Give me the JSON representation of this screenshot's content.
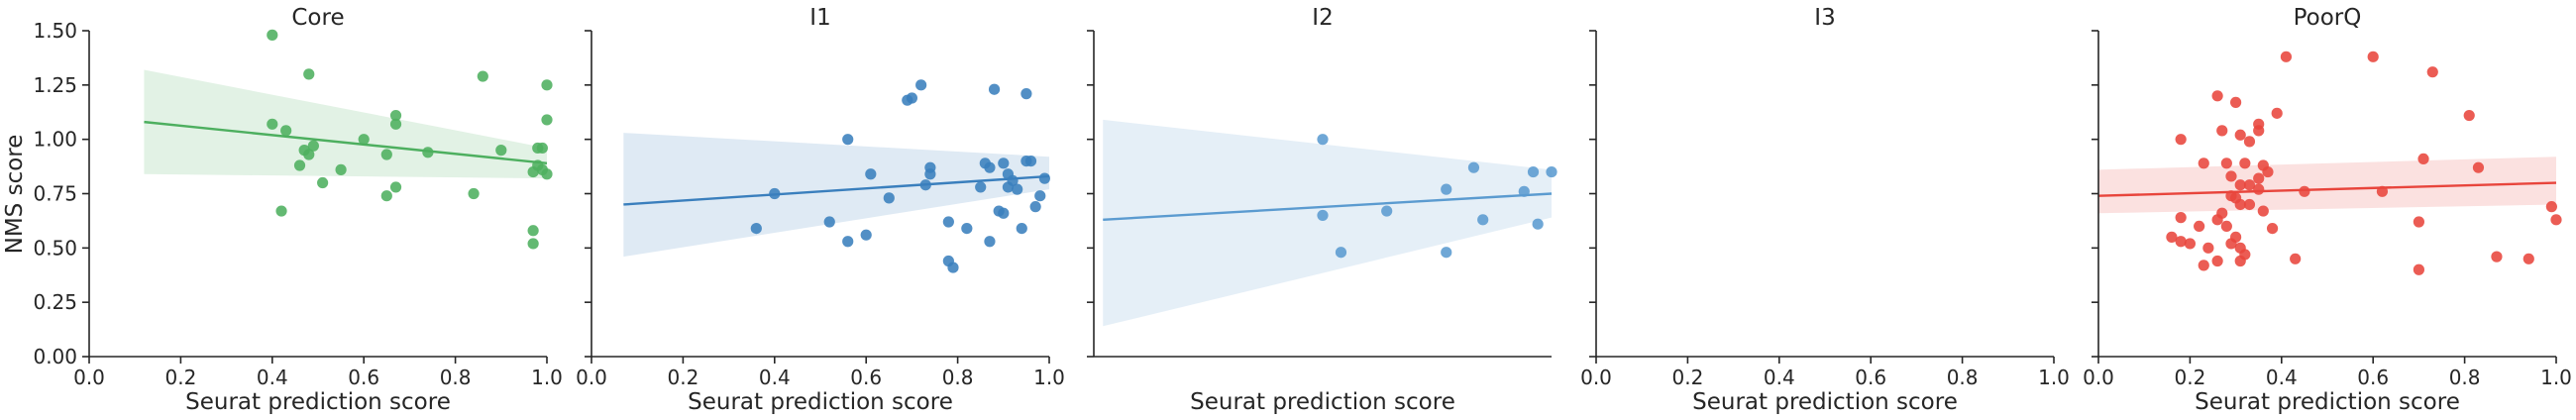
{
  "chart_data": {
    "type": "scatter",
    "ylabel": "NMS score",
    "xlabel": "Seurat prediction score",
    "xlim": [
      0,
      1
    ],
    "ylim": [
      0,
      1.5
    ],
    "xticks": [
      "0.0",
      "0.2",
      "0.4",
      "0.6",
      "0.8",
      "1.0"
    ],
    "yticks": [
      "0.00",
      "0.25",
      "0.50",
      "0.75",
      "1.00",
      "1.25",
      "1.50"
    ],
    "grid": false,
    "panels": [
      {
        "title": "Core",
        "color": "#4daf5f",
        "band_color": "#4daf5f",
        "show_xticks": true,
        "show_ytick_labels": true,
        "fit": {
          "x": [
            0.12,
            1.0
          ],
          "y": [
            1.08,
            0.89
          ],
          "lo": [
            0.84,
            0.82
          ],
          "hi": [
            1.32,
            0.96
          ]
        },
        "points": [
          [
            0.4,
            1.48
          ],
          [
            0.48,
            1.3
          ],
          [
            0.86,
            1.29
          ],
          [
            1.0,
            1.25
          ],
          [
            0.4,
            1.07
          ],
          [
            0.43,
            1.04
          ],
          [
            0.6,
            1.0
          ],
          [
            0.67,
            1.11
          ],
          [
            0.67,
            1.07
          ],
          [
            1.0,
            1.09
          ],
          [
            0.74,
            0.94
          ],
          [
            0.49,
            0.97
          ],
          [
            0.47,
            0.95
          ],
          [
            0.48,
            0.93
          ],
          [
            0.46,
            0.88
          ],
          [
            0.65,
            0.93
          ],
          [
            0.9,
            0.95
          ],
          [
            0.98,
            0.96
          ],
          [
            0.99,
            0.96
          ],
          [
            0.55,
            0.86
          ],
          [
            0.51,
            0.8
          ],
          [
            0.97,
            0.85
          ],
          [
            0.98,
            0.88
          ],
          [
            0.99,
            0.86
          ],
          [
            1.0,
            0.84
          ],
          [
            0.67,
            0.78
          ],
          [
            0.65,
            0.74
          ],
          [
            0.84,
            0.75
          ],
          [
            0.42,
            0.67
          ],
          [
            0.97,
            0.58
          ],
          [
            0.97,
            0.52
          ]
        ]
      },
      {
        "title": "I1",
        "color": "#3a7fbd",
        "band_color": "#3a7fbd",
        "show_xticks": true,
        "show_ytick_labels": false,
        "fit": {
          "x": [
            0.07,
            1.0
          ],
          "y": [
            0.7,
            0.83
          ],
          "lo": [
            0.46,
            0.77
          ],
          "hi": [
            1.03,
            0.92
          ]
        },
        "points": [
          [
            0.72,
            1.25
          ],
          [
            0.88,
            1.23
          ],
          [
            0.95,
            1.21
          ],
          [
            0.7,
            1.19
          ],
          [
            0.69,
            1.18
          ],
          [
            0.56,
            1.0
          ],
          [
            0.86,
            0.89
          ],
          [
            0.9,
            0.89
          ],
          [
            0.95,
            0.9
          ],
          [
            0.96,
            0.9
          ],
          [
            0.74,
            0.87
          ],
          [
            0.87,
            0.87
          ],
          [
            0.91,
            0.84
          ],
          [
            0.74,
            0.84
          ],
          [
            0.92,
            0.81
          ],
          [
            0.99,
            0.82
          ],
          [
            0.61,
            0.84
          ],
          [
            0.4,
            0.75
          ],
          [
            0.73,
            0.79
          ],
          [
            0.85,
            0.78
          ],
          [
            0.91,
            0.78
          ],
          [
            0.98,
            0.74
          ],
          [
            0.65,
            0.73
          ],
          [
            0.93,
            0.77
          ],
          [
            0.97,
            0.69
          ],
          [
            0.89,
            0.67
          ],
          [
            0.9,
            0.66
          ],
          [
            0.52,
            0.62
          ],
          [
            0.78,
            0.62
          ],
          [
            0.94,
            0.59
          ],
          [
            0.36,
            0.59
          ],
          [
            0.6,
            0.56
          ],
          [
            0.56,
            0.53
          ],
          [
            0.82,
            0.59
          ],
          [
            0.87,
            0.53
          ],
          [
            0.78,
            0.44
          ],
          [
            0.79,
            0.41
          ]
        ]
      },
      {
        "title": "I2",
        "color": "#5b9bd0",
        "band_color": "#5b9bd0",
        "show_xticks": false,
        "show_ytick_labels": false,
        "fit": {
          "x": [
            0.02,
            1.0
          ],
          "y": [
            0.63,
            0.75
          ],
          "lo": [
            0.14,
            0.64
          ],
          "hi": [
            1.09,
            0.86
          ]
        },
        "points": [
          [
            0.5,
            1.0
          ],
          [
            0.83,
            0.87
          ],
          [
            0.96,
            0.85
          ],
          [
            1.0,
            0.85
          ],
          [
            0.77,
            0.77
          ],
          [
            0.94,
            0.76
          ],
          [
            0.5,
            0.65
          ],
          [
            0.64,
            0.67
          ],
          [
            0.85,
            0.63
          ],
          [
            0.97,
            0.61
          ],
          [
            0.54,
            0.48
          ],
          [
            0.77,
            0.48
          ]
        ]
      },
      {
        "title": "I3",
        "color": "#7f7f7f",
        "band_color": "#7f7f7f",
        "show_xticks": true,
        "show_ytick_labels": false,
        "fit": null,
        "points": []
      },
      {
        "title": "PoorQ",
        "color": "#e8453c",
        "band_color": "#e8453c",
        "show_xticks": true,
        "show_ytick_labels": false,
        "fit": {
          "x": [
            0.0,
            1.0
          ],
          "y": [
            0.74,
            0.8
          ],
          "lo": [
            0.66,
            0.7
          ],
          "hi": [
            0.86,
            0.92
          ]
        },
        "points": [
          [
            0.41,
            1.38
          ],
          [
            0.6,
            1.38
          ],
          [
            0.73,
            1.31
          ],
          [
            0.26,
            1.2
          ],
          [
            0.3,
            1.17
          ],
          [
            0.39,
            1.12
          ],
          [
            0.81,
            1.11
          ],
          [
            0.35,
            1.07
          ],
          [
            0.35,
            1.04
          ],
          [
            0.27,
            1.04
          ],
          [
            0.31,
            1.02
          ],
          [
            0.18,
            1.0
          ],
          [
            0.33,
            0.99
          ],
          [
            0.71,
            0.91
          ],
          [
            0.83,
            0.87
          ],
          [
            0.23,
            0.89
          ],
          [
            0.28,
            0.89
          ],
          [
            0.32,
            0.89
          ],
          [
            0.36,
            0.88
          ],
          [
            0.37,
            0.85
          ],
          [
            0.29,
            0.83
          ],
          [
            0.35,
            0.82
          ],
          [
            0.31,
            0.79
          ],
          [
            0.33,
            0.79
          ],
          [
            0.35,
            0.77
          ],
          [
            0.45,
            0.76
          ],
          [
            0.62,
            0.76
          ],
          [
            0.29,
            0.74
          ],
          [
            0.3,
            0.73
          ],
          [
            0.33,
            0.7
          ],
          [
            0.31,
            0.7
          ],
          [
            0.36,
            0.67
          ],
          [
            0.27,
            0.66
          ],
          [
            0.26,
            0.63
          ],
          [
            0.18,
            0.64
          ],
          [
            0.22,
            0.6
          ],
          [
            0.28,
            0.6
          ],
          [
            0.38,
            0.59
          ],
          [
            0.7,
            0.62
          ],
          [
            1.0,
            0.63
          ],
          [
            0.99,
            0.69
          ],
          [
            0.16,
            0.55
          ],
          [
            0.18,
            0.53
          ],
          [
            0.2,
            0.52
          ],
          [
            0.3,
            0.55
          ],
          [
            0.29,
            0.52
          ],
          [
            0.31,
            0.5
          ],
          [
            0.24,
            0.5
          ],
          [
            0.32,
            0.47
          ],
          [
            0.43,
            0.45
          ],
          [
            0.26,
            0.44
          ],
          [
            0.31,
            0.44
          ],
          [
            0.23,
            0.42
          ],
          [
            0.87,
            0.46
          ],
          [
            0.94,
            0.45
          ],
          [
            0.7,
            0.4
          ]
        ]
      }
    ]
  }
}
